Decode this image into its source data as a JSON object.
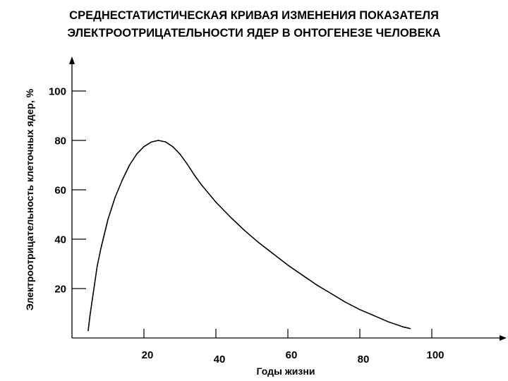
{
  "chart_data": {
    "type": "line",
    "title_lines": [
      "СРЕДНЕСТАТИСТИЧЕСКАЯ КРИВАЯ ИЗМЕНЕНИЯ ПОКАЗАТЕЛЯ",
      "ЭЛЕКТРООТРИЦАТЕЛЬНОСТИ ЯДЕР В ОНТОГЕНЕЗЕ ЧЕЛОВЕКА"
    ],
    "xlabel": "Годы жизни",
    "ylabel": "Электроотрицательность клеточных ядер, %",
    "x_ticks": [
      "20",
      "40",
      "60",
      "80",
      "100"
    ],
    "y_ticks": [
      "20",
      "40",
      "60",
      "80",
      "100"
    ],
    "xlim": [
      0,
      118
    ],
    "ylim": [
      0,
      115
    ],
    "grid": false,
    "series": [
      {
        "x": [
          4.5,
          5,
          6,
          7,
          8,
          10,
          12,
          14,
          16,
          18,
          20,
          22,
          24,
          26,
          28,
          30,
          32,
          34,
          36,
          40,
          44,
          48,
          52,
          56,
          60,
          64,
          68,
          72,
          76,
          80,
          84,
          88,
          92,
          94
        ],
        "y": [
          3,
          9,
          19,
          29,
          36,
          48,
          57,
          64,
          70,
          74.5,
          77.5,
          79.3,
          80,
          79.4,
          77.5,
          74.5,
          70.5,
          66,
          62,
          55,
          49,
          43.5,
          38.5,
          34,
          29.5,
          25.5,
          21.5,
          18,
          14.5,
          11.5,
          9,
          6.5,
          4.5,
          3.8
        ],
        "color": "#000000"
      }
    ]
  }
}
